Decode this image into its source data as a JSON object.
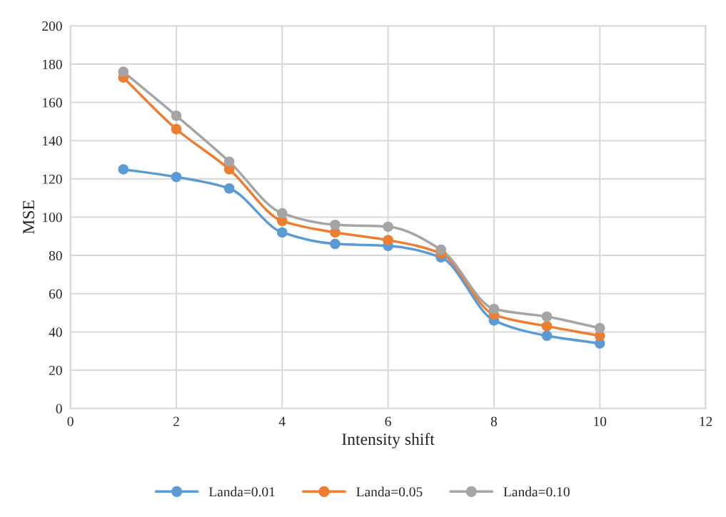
{
  "chart_data": {
    "type": "line",
    "xlabel": "Intensity shift",
    "ylabel": "MSE",
    "x": [
      1,
      2,
      3,
      4,
      5,
      6,
      7,
      8,
      9,
      10
    ],
    "series": [
      {
        "name": "Landa=0.01",
        "color": "#5b9bd5",
        "values": [
          125,
          121,
          115,
          92,
          86,
          85,
          79,
          46,
          38,
          34
        ]
      },
      {
        "name": "Landa=0.05",
        "color": "#ed7d31",
        "values": [
          173,
          146,
          125,
          98,
          92,
          88,
          81,
          49,
          43,
          38
        ]
      },
      {
        "name": "Landa=0.10",
        "color": "#a5a5a5",
        "values": [
          176,
          153,
          129,
          102,
          96,
          95,
          83,
          52,
          48,
          42
        ]
      }
    ],
    "xlim": [
      0,
      12
    ],
    "xticks": [
      0,
      2,
      4,
      6,
      8,
      10,
      12
    ],
    "ylim": [
      0,
      200
    ],
    "yticks": [
      0,
      20,
      40,
      60,
      80,
      100,
      120,
      140,
      160,
      180,
      200
    ],
    "grid": true,
    "legend": "bottom",
    "marker": "circle",
    "line_style": "solid"
  }
}
